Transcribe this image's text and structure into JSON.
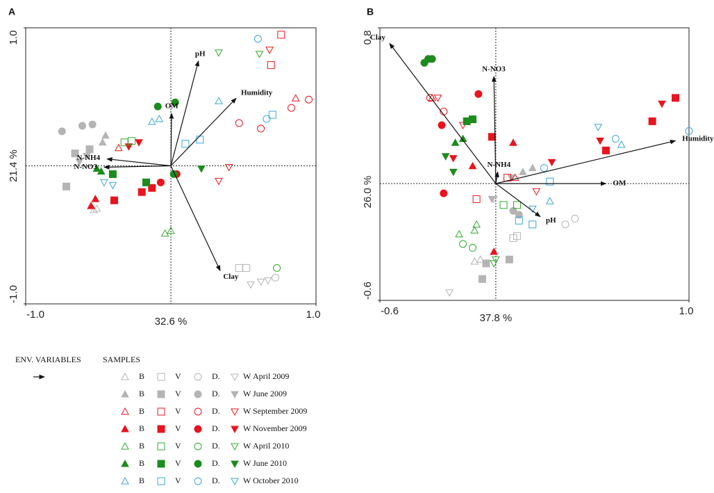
{
  "chart_data": [
    {
      "type": "biplot",
      "panel": "A",
      "xlabel": "32.6 %",
      "ylabel": "21.4 %",
      "xlim": [
        -1,
        1
      ],
      "ylim": [
        -1,
        1
      ],
      "xticks": [
        {
          "value": -1,
          "label": "-1.0"
        },
        {
          "value": 1,
          "label": "1.0"
        }
      ],
      "yticks": [
        {
          "value": -1,
          "label": "-1.0"
        },
        {
          "value": 1,
          "label": "1.0"
        }
      ],
      "arrows": [
        {
          "label": "pH",
          "x": 0.19,
          "y": 0.76
        },
        {
          "label": "Humidity",
          "x": 0.45,
          "y": 0.49
        },
        {
          "label": "OM",
          "x": 0.005,
          "y": 0.38
        },
        {
          "label": "N-NH4",
          "x": -0.44,
          "y": 0.05
        },
        {
          "label": "N-NO3",
          "x": -0.46,
          "y": -0.01
        },
        {
          "label": "Clay",
          "x": 0.34,
          "y": -0.76
        }
      ],
      "series": [
        {
          "markers": [
            {
              "x": [
                -0.53,
                -0.51
              ],
              "y": [
                -0.32,
                -0.31
              ]
            },
            {
              "x": [
                0.52,
                0.47
              ],
              "y": [
                -0.74,
                -0.74
              ]
            },
            {
              "x": [
                0.72
              ],
              "y": [
                -0.81
              ]
            },
            {
              "x": [
                0.55,
                0.62,
                0.67
              ],
              "y": [
                -0.86,
                -0.84,
                -0.83
              ]
            }
          ]
        },
        {
          "markers": [
            {
              "x": [
                -0.45,
                -0.47
              ],
              "y": [
                0.22,
                0.17
              ]
            },
            {
              "x": [
                -0.66,
                -0.72,
                -0.56
              ],
              "y": [
                0.09,
                -0.15,
                0.12
              ]
            },
            {
              "x": [
                -0.75,
                -0.61,
                -0.54
              ],
              "y": [
                0.25,
                0.29,
                0.3
              ]
            },
            {
              "x": [
                -0.63,
                -0.58
              ],
              "y": [
                0.03,
                0.07
              ]
            }
          ]
        },
        {
          "markers": [
            {
              "x": [
                0.86,
                -0.36
              ],
              "y": [
                0.49,
                0.13
              ]
            },
            {
              "x": [
                0.76,
                0.69
              ],
              "y": [
                0.95,
                0.73
              ]
            },
            {
              "x": [
                0.95,
                0.83,
                0.47,
                0.62
              ],
              "y": [
                0.48,
                0.42,
                0.31,
                0.27
              ]
            },
            {
              "x": [
                0.68,
                0.4,
                0.33
              ],
              "y": [
                0.84,
                -0.01,
                -0.11
              ]
            }
          ]
        },
        {
          "markers": [
            {
              "x": [
                -0.55,
                -0.52
              ],
              "y": [
                -0.29,
                -0.24
              ]
            },
            {
              "x": [
                -0.2,
                -0.13,
                -0.39
              ],
              "y": [
                -0.19,
                -0.16,
                -0.25
              ]
            },
            {
              "x": [
                -0.07,
                0.04
              ],
              "y": [
                -0.12,
                -0.06
              ]
            },
            {
              "x": [
                -0.29,
                -0.22
              ],
              "y": [
                0.14,
                0.17
              ]
            }
          ]
        },
        {
          "markers": [
            {
              "x": [
                -0.04,
                0
              ],
              "y": [
                -0.49,
                -0.47
              ]
            },
            {
              "x": [
                -0.32,
                -0.27
              ],
              "y": [
                0.17,
                0.18
              ]
            },
            {
              "x": [
                0.73
              ],
              "y": [
                -0.74
              ]
            },
            {
              "x": [
                0.33,
                0.61
              ],
              "y": [
                0.82,
                0.81
              ]
            }
          ]
        },
        {
          "markers": [
            {
              "x": [
                -0.48,
                -0.51
              ],
              "y": [
                -0.04,
                -0.02
              ]
            },
            {
              "x": [
                -0.17,
                -0.4
              ],
              "y": [
                -0.12,
                -0.06
              ]
            },
            {
              "x": [
                -0.09,
                0.03,
                0.02
              ],
              "y": [
                0.43,
                0.46,
                -0.06
              ]
            },
            {
              "x": [
                0.21
              ],
              "y": [
                -0.02
              ]
            }
          ]
        },
        {
          "markers": [
            {
              "x": [
                -0.13,
                -0.08,
                0.33
              ],
              "y": [
                0.32,
                0.34,
                0.47
              ]
            },
            {
              "x": [
                0.7,
                0.2,
                0.1
              ],
              "y": [
                0.37,
                0.19,
                0.16
              ]
            },
            {
              "x": [
                0.6,
                0.66
              ],
              "y": [
                0.92,
                0.34
              ]
            },
            {
              "x": [
                -0.46,
                -0.4
              ],
              "y": [
                -0.12,
                -0.14
              ]
            }
          ]
        }
      ]
    },
    {
      "type": "biplot",
      "panel": "B",
      "xlabel": "37.8 %",
      "ylabel": "26.0 %",
      "xlim": [
        -0.6,
        1.0
      ],
      "ylim": [
        -0.6,
        0.8
      ],
      "xticks": [
        {
          "value": -0.6,
          "label": "-0.6"
        },
        {
          "value": 1.0,
          "label": "1.0"
        }
      ],
      "yticks": [
        {
          "value": -0.6,
          "label": "-0.6"
        },
        {
          "value": 0.8,
          "label": "0.8"
        }
      ],
      "arrows": [
        {
          "label": "Clay",
          "x": -0.55,
          "y": 0.72
        },
        {
          "label": "N-NO3",
          "x": -0.01,
          "y": 0.55
        },
        {
          "label": "N-NH4",
          "x": 0.01,
          "y": 0.06
        },
        {
          "label": "OM",
          "x": 0.57,
          "y": 0
        },
        {
          "label": "Humidity",
          "x": 0.93,
          "y": 0.22
        },
        {
          "label": "pH",
          "x": 0.23,
          "y": -0.17
        }
      ],
      "series": [
        {
          "markers": [
            {
              "x": [
                -0.11,
                -0.08
              ],
              "y": [
                -0.4,
                -0.39
              ]
            },
            {
              "x": [
                0.11,
                0.09
              ],
              "y": [
                -0.27,
                -0.28
              ]
            },
            {
              "x": [
                0.36,
                0.41
              ],
              "y": [
                -0.21,
                -0.18
              ]
            },
            {
              "x": [
                -0.24,
                -0.01
              ],
              "y": [
                -0.56,
                -0.08
              ]
            }
          ]
        },
        {
          "markers": [
            {
              "x": [
                0.19,
                0.14
              ],
              "y": [
                0.08,
                0.06
              ]
            },
            {
              "x": [
                0.07,
                -0.07,
                -0.05
              ],
              "y": [
                -0.39,
                -0.49,
                -0.41
              ]
            },
            {
              "x": [
                0.09,
                0.12
              ],
              "y": [
                -0.14,
                -0.16
              ]
            },
            {
              "x": [
                -0.02,
                0.08
              ],
              "y": [
                -0.08,
                0.03
              ]
            }
          ]
        },
        {
          "markers": [
            {
              "x": [
                -0.33,
                0.1
              ],
              "y": [
                0.44,
                0.03
              ]
            },
            {
              "x": [
                -0.1,
                0.06
              ],
              "y": [
                -0.08,
                0.03
              ]
            },
            {
              "x": [
                -0.34,
                -0.27
              ],
              "y": [
                0.44,
                0.37
              ]
            },
            {
              "x": [
                -0.3,
                -0.17,
                0.21
              ],
              "y": [
                0.44,
                0.3,
                -0.04
              ]
            }
          ]
        },
        {
          "markers": [
            {
              "x": [
                0.09,
                -0.01,
                -0.12
              ],
              "y": [
                0.21,
                -0.35,
                0.09
              ]
            },
            {
              "x": [
                -0.02,
                0.81,
                0.93,
                0.57
              ],
              "y": [
                0.24,
                0.32,
                0.44,
                0.17
              ]
            },
            {
              "x": [
                -0.09,
                -0.28,
                -0.27
              ],
              "y": [
                0.46,
                0.3,
                -0.05
              ]
            },
            {
              "x": [
                0.29,
                0.86,
                0.54,
                -0.22
              ],
              "y": [
                0.11,
                0.41,
                0.22,
                0.13
              ]
            }
          ]
        },
        {
          "markers": [
            {
              "x": [
                -0.1,
                -0.19,
                -0.11
              ],
              "y": [
                -0.21,
                -0.26,
                -0.24
              ]
            },
            {
              "x": [
                0.04,
                0.11
              ],
              "y": [
                -0.11,
                -0.11
              ]
            },
            {
              "x": [
                -0.17,
                -0.12
              ],
              "y": [
                -0.31,
                -0.33
              ]
            },
            {
              "x": [
                0,
                -0.01
              ],
              "y": [
                -0.39,
                -0.41
              ]
            }
          ]
        },
        {
          "markers": [
            {
              "x": [
                -0.21,
                -0.17
              ],
              "y": [
                0.21,
                0.23
              ]
            },
            {
              "x": [
                -0.15,
                -0.12
              ],
              "y": [
                0.32,
                0.33
              ]
            },
            {
              "x": [
                -0.37,
                -0.35,
                -0.33
              ],
              "y": [
                0.62,
                0.64,
                0.64
              ]
            },
            {
              "x": [
                -0.26,
                -0.22
              ],
              "y": [
                0.14,
                0.06
              ]
            }
          ]
        },
        {
          "markers": [
            {
              "x": [
                0.28,
                0.65
              ],
              "y": [
                -0.09,
                0.2
              ]
            },
            {
              "x": [
                0.12,
                0.19,
                0.28
              ],
              "y": [
                -0.19,
                -0.21,
                0.01
              ]
            },
            {
              "x": [
                0.62,
                1.0,
                0.25
              ],
              "y": [
                0.23,
                0.27,
                0.08
              ]
            },
            {
              "x": [
                0.53,
                0.19
              ],
              "y": [
                0.29,
                -0.13
              ]
            }
          ]
        }
      ]
    }
  ],
  "legend": {
    "env_title": "ENV. VARIABLES",
    "samples_title": "SAMPLES",
    "markers": [
      {
        "name": "B",
        "shape": "triangle"
      },
      {
        "name": "V",
        "shape": "square"
      },
      {
        "name": "D.",
        "shape": "circle"
      },
      {
        "name": "W",
        "shape": "inverted-triangle"
      }
    ],
    "periods": [
      {
        "name": "April 2009",
        "color": "#b4b4b4",
        "filled": false
      },
      {
        "name": "June 2009",
        "color": "#b4b4b4",
        "filled": true
      },
      {
        "name": "September 2009",
        "color": "#e8141e",
        "filled": false
      },
      {
        "name": "November 2009",
        "color": "#e8141e",
        "filled": true
      },
      {
        "name": "April 2010",
        "color": "#2ea82e",
        "filled": false
      },
      {
        "name": "June 2010",
        "color": "#1c8c1c",
        "filled": true
      },
      {
        "name": "October 2010",
        "color": "#3aa6d8",
        "filled": false
      }
    ]
  }
}
